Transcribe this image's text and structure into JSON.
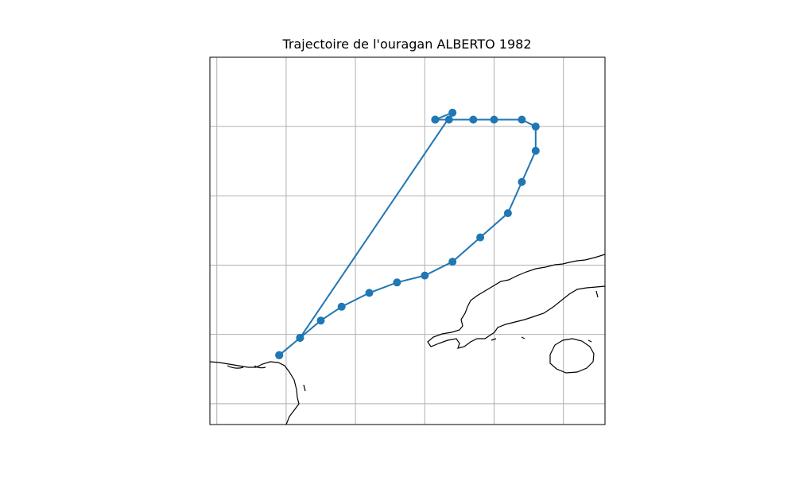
{
  "title": "Trajectoire de l'ouragan ALBERTO 1982",
  "colors": {
    "track": "#1f77b4",
    "coast": "#000000",
    "grid": "#b0b0b0",
    "frame": "#000000",
    "background": "#ffffff"
  },
  "map": {
    "projection": "PlateCarree",
    "extent": {
      "lon": [
        -87.9,
        -82.2
      ],
      "lat": [
        19.0,
        24.3
      ]
    },
    "gridlines": true,
    "grid_lon": [
      -87.8,
      -86.8,
      -85.8,
      -84.8,
      -83.8,
      -82.8
    ],
    "grid_lat": [
      19.3,
      20.3,
      21.3,
      22.3,
      23.3
    ],
    "tick_labels_shown": false
  },
  "chart_data": {
    "type": "map-track",
    "title": "Trajectoire de l'ouragan ALBERTO 1982",
    "storm": "ALBERTO",
    "year": 1982,
    "lon": [
      -86.9,
      -86.6,
      -86.3,
      -86.0,
      -85.6,
      -85.2,
      -84.8,
      -84.4,
      -84.0,
      -83.6,
      -83.4,
      -83.2,
      -83.2,
      -83.4,
      -83.8,
      -84.1,
      -84.45,
      -84.65,
      -84.65,
      -84.4,
      -86.6,
      -86.9
    ],
    "lat": [
      20.0,
      20.25,
      20.5,
      20.7,
      20.9,
      21.05,
      21.15,
      21.35,
      21.7,
      22.05,
      22.5,
      22.95,
      23.3,
      23.4,
      23.4,
      23.4,
      23.4,
      23.4,
      23.4,
      23.5,
      20.25,
      20.0
    ]
  }
}
